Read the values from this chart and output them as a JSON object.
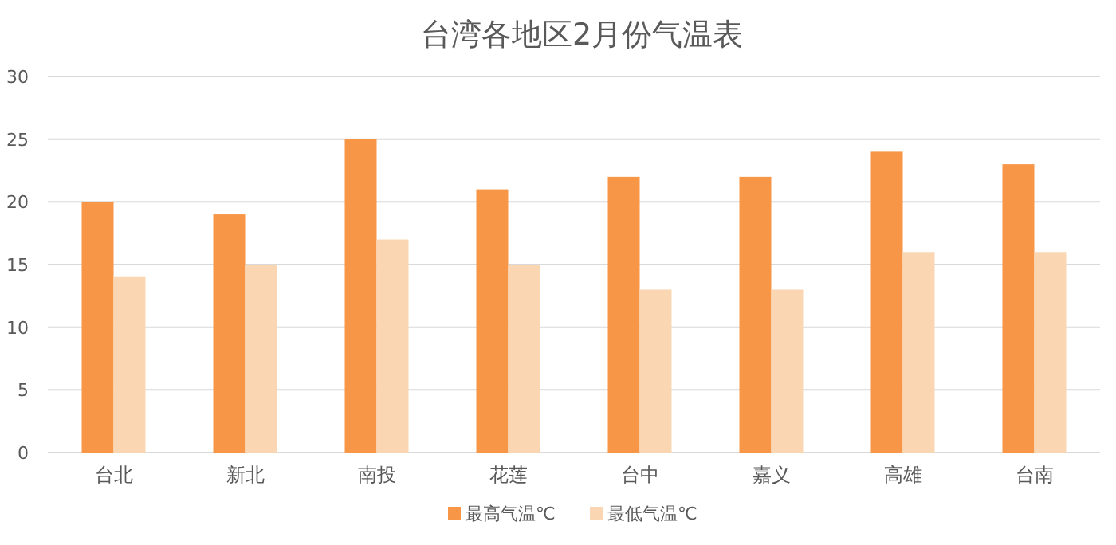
{
  "chart_data": {
    "type": "bar",
    "title": "台湾各地区2月份气温表",
    "categories": [
      "台北",
      "新北",
      "南投",
      "花莲",
      "台中",
      "嘉义",
      "高雄",
      "台南"
    ],
    "series": [
      {
        "name": "最高气温℃",
        "color": "#f79646",
        "values": [
          20,
          19,
          25,
          21,
          22,
          22,
          24,
          23
        ]
      },
      {
        "name": "最低气温℃",
        "color": "#fad7b2",
        "values": [
          14,
          15,
          17,
          15,
          13,
          13,
          16,
          16
        ]
      }
    ],
    "ylim": [
      0,
      30
    ],
    "yticks": [
      0,
      5,
      10,
      15,
      20,
      25,
      30
    ],
    "grid": "y",
    "legend": "bottom"
  }
}
